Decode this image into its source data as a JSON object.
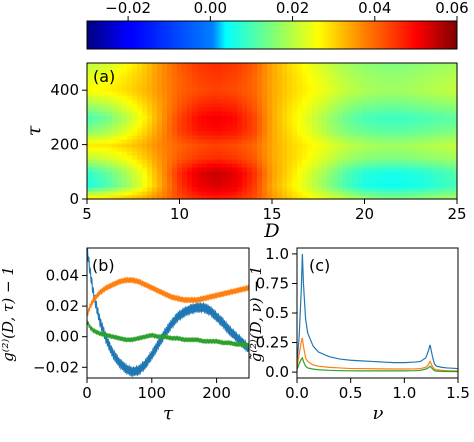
{
  "chart_data": [
    {
      "id": "colorbar",
      "type": "colorbar",
      "colormap": "jet",
      "range": [
        -0.03,
        0.06
      ],
      "ticks": [
        -0.02,
        0.0,
        0.02,
        0.04,
        0.06
      ],
      "tick_labels": [
        "−0.02",
        "0.00",
        "0.02",
        "0.04",
        "0.06"
      ]
    },
    {
      "id": "panel-a",
      "type": "heatmap",
      "panel_label": "(a)",
      "xlabel": "D",
      "ylabel": "τ",
      "xlim": [
        5,
        25
      ],
      "ylim": [
        0,
        500
      ],
      "xticks": [
        5,
        10,
        15,
        20,
        25
      ],
      "xtick_labels": [
        "5",
        "10",
        "15",
        "20",
        "25"
      ],
      "yticks": [
        0,
        200,
        400
      ],
      "ytick_labels": [
        "0",
        "200",
        "400"
      ],
      "value_range": [
        -0.03,
        0.06
      ],
      "d_samples": [
        5,
        6,
        7,
        8,
        9,
        10,
        11,
        12,
        13,
        14,
        15,
        16,
        17,
        18,
        19,
        20,
        21,
        22,
        23,
        24,
        25
      ],
      "tau_samples": [
        0,
        50,
        100,
        150,
        200,
        250,
        300,
        350,
        400,
        450,
        500
      ],
      "values": [
        [
          0.03,
          0.03,
          0.032,
          0.034,
          0.038,
          0.042,
          0.045,
          0.046,
          0.045,
          0.042,
          0.036,
          0.031,
          0.027,
          0.024,
          0.021,
          0.018,
          0.016,
          0.016,
          0.017,
          0.018,
          0.019
        ],
        [
          0.006,
          0.01,
          0.016,
          0.024,
          0.034,
          0.044,
          0.05,
          0.052,
          0.05,
          0.044,
          0.034,
          0.028,
          0.022,
          0.016,
          0.01,
          0.006,
          0.005,
          0.005,
          0.006,
          0.008,
          0.01
        ],
        [
          0.008,
          0.012,
          0.018,
          0.025,
          0.035,
          0.045,
          0.051,
          0.054,
          0.051,
          0.045,
          0.035,
          0.029,
          0.023,
          0.017,
          0.011,
          0.007,
          0.006,
          0.006,
          0.007,
          0.009,
          0.011
        ],
        [
          0.02,
          0.022,
          0.025,
          0.03,
          0.036,
          0.041,
          0.044,
          0.045,
          0.044,
          0.041,
          0.034,
          0.03,
          0.026,
          0.022,
          0.018,
          0.016,
          0.015,
          0.015,
          0.016,
          0.017,
          0.018
        ],
        [
          0.028,
          0.028,
          0.03,
          0.033,
          0.037,
          0.04,
          0.042,
          0.043,
          0.042,
          0.04,
          0.034,
          0.03,
          0.027,
          0.024,
          0.021,
          0.019,
          0.018,
          0.018,
          0.019,
          0.02,
          0.021
        ],
        [
          0.016,
          0.018,
          0.023,
          0.029,
          0.036,
          0.043,
          0.047,
          0.048,
          0.047,
          0.043,
          0.034,
          0.029,
          0.024,
          0.019,
          0.015,
          0.013,
          0.012,
          0.012,
          0.013,
          0.014,
          0.015
        ],
        [
          0.01,
          0.013,
          0.019,
          0.026,
          0.035,
          0.043,
          0.048,
          0.05,
          0.048,
          0.043,
          0.034,
          0.028,
          0.023,
          0.018,
          0.013,
          0.01,
          0.009,
          0.009,
          0.01,
          0.011,
          0.012
        ],
        [
          0.018,
          0.02,
          0.024,
          0.029,
          0.035,
          0.041,
          0.045,
          0.046,
          0.045,
          0.041,
          0.034,
          0.029,
          0.025,
          0.021,
          0.017,
          0.015,
          0.014,
          0.014,
          0.015,
          0.016,
          0.017
        ],
        [
          0.026,
          0.027,
          0.029,
          0.032,
          0.036,
          0.04,
          0.042,
          0.043,
          0.042,
          0.04,
          0.034,
          0.03,
          0.027,
          0.024,
          0.021,
          0.019,
          0.018,
          0.018,
          0.019,
          0.02,
          0.021
        ],
        [
          0.024,
          0.025,
          0.028,
          0.031,
          0.036,
          0.04,
          0.043,
          0.044,
          0.043,
          0.04,
          0.034,
          0.03,
          0.026,
          0.023,
          0.02,
          0.018,
          0.017,
          0.017,
          0.018,
          0.019,
          0.02
        ],
        [
          0.02,
          0.022,
          0.025,
          0.03,
          0.036,
          0.041,
          0.044,
          0.045,
          0.044,
          0.041,
          0.034,
          0.029,
          0.025,
          0.021,
          0.018,
          0.016,
          0.015,
          0.015,
          0.016,
          0.017,
          0.018
        ]
      ]
    },
    {
      "id": "panel-b",
      "type": "line",
      "panel_label": "(b)",
      "xlabel": "τ",
      "ylabel": "g⁽²⁾(D, τ) − 1",
      "xlim": [
        0,
        250
      ],
      "ylim": [
        -0.027,
        0.058
      ],
      "xticks": [
        0,
        100,
        200
      ],
      "xtick_labels": [
        "0",
        "100",
        "200"
      ],
      "yticks": [
        -0.02,
        0.0,
        0.02,
        0.04
      ],
      "ytick_labels": [
        "−0.02",
        "0.00",
        "0.02",
        "0.04"
      ],
      "series": [
        {
          "color": "#1f77b4",
          "oscillation_amplitude": 0.0028,
          "x": [
            0,
            5,
            10,
            20,
            30,
            40,
            50,
            60,
            70,
            80,
            90,
            100,
            110,
            120,
            130,
            140,
            150,
            160,
            170,
            180,
            190,
            200,
            210,
            220,
            230,
            240,
            250
          ],
          "y": [
            0.058,
            0.042,
            0.028,
            0.01,
            -0.002,
            -0.011,
            -0.017,
            -0.021,
            -0.023,
            -0.022,
            -0.018,
            -0.012,
            -0.005,
            0.002,
            0.008,
            0.013,
            0.016,
            0.018,
            0.019,
            0.019,
            0.017,
            0.013,
            0.009,
            0.004,
            0.0,
            -0.004,
            -0.008
          ]
        },
        {
          "color": "#ff7f0e",
          "oscillation_amplitude": 0.0015,
          "x": [
            0,
            5,
            10,
            20,
            30,
            40,
            50,
            60,
            70,
            80,
            90,
            100,
            110,
            120,
            130,
            140,
            150,
            160,
            170,
            180,
            190,
            200,
            210,
            220,
            230,
            240,
            250
          ],
          "y": [
            0.014,
            0.02,
            0.024,
            0.029,
            0.032,
            0.034,
            0.036,
            0.037,
            0.037,
            0.036,
            0.034,
            0.032,
            0.03,
            0.028,
            0.026,
            0.025,
            0.024,
            0.024,
            0.024,
            0.025,
            0.026,
            0.027,
            0.028,
            0.029,
            0.03,
            0.031,
            0.032
          ]
        },
        {
          "color": "#2ca02c",
          "oscillation_amplitude": 0.0012,
          "x": [
            0,
            5,
            10,
            20,
            30,
            40,
            50,
            60,
            70,
            80,
            90,
            100,
            110,
            120,
            130,
            140,
            150,
            160,
            170,
            180,
            190,
            200,
            210,
            220,
            230,
            240,
            250
          ],
          "y": [
            0.01,
            0.006,
            0.004,
            0.002,
            0.001,
            0.0,
            -0.001,
            -0.002,
            -0.002,
            -0.001,
            0.0,
            0.001,
            0.0,
            0.0,
            -0.001,
            -0.001,
            -0.002,
            -0.002,
            -0.002,
            -0.003,
            -0.003,
            -0.003,
            -0.004,
            -0.004,
            -0.005,
            -0.005,
            -0.006
          ]
        }
      ]
    },
    {
      "id": "panel-c",
      "type": "line",
      "panel_label": "(c)",
      "xlabel": "ν",
      "ylabel": "g̃⁽²⁾(D, ν) − 1",
      "xlim": [
        0,
        1.5
      ],
      "ylim": [
        -0.05,
        1.05
      ],
      "xticks": [
        0.0,
        0.5,
        1.0,
        1.5
      ],
      "xtick_labels": [
        "0.0",
        "0.5",
        "1.0",
        "1.5"
      ],
      "yticks": [
        0.0,
        0.25,
        0.5,
        0.75,
        1.0
      ],
      "ytick_labels": [
        "0.0",
        "0.25",
        "0.5",
        "0.75",
        "1.0"
      ],
      "series": [
        {
          "color": "#1f77b4",
          "x": [
            0.0,
            0.02,
            0.04,
            0.05,
            0.06,
            0.08,
            0.1,
            0.15,
            0.2,
            0.3,
            0.4,
            0.5,
            0.6,
            0.7,
            0.8,
            0.9,
            1.0,
            1.1,
            1.15,
            1.2,
            1.22,
            1.24,
            1.26,
            1.28,
            1.3,
            1.35,
            1.4,
            1.5
          ],
          "y": [
            0.08,
            0.3,
            0.7,
            1.0,
            0.75,
            0.45,
            0.33,
            0.22,
            0.17,
            0.13,
            0.11,
            0.1,
            0.095,
            0.09,
            0.085,
            0.08,
            0.08,
            0.085,
            0.09,
            0.12,
            0.17,
            0.23,
            0.14,
            0.07,
            0.05,
            0.04,
            0.035,
            0.03
          ]
        },
        {
          "color": "#ff7f0e",
          "x": [
            0.0,
            0.02,
            0.04,
            0.05,
            0.06,
            0.08,
            0.1,
            0.15,
            0.2,
            0.3,
            0.4,
            0.5,
            0.6,
            0.7,
            0.8,
            0.9,
            1.0,
            1.1,
            1.15,
            1.2,
            1.22,
            1.24,
            1.26,
            1.28,
            1.3,
            1.35,
            1.4,
            1.5
          ],
          "y": [
            0.04,
            0.15,
            0.26,
            0.29,
            0.22,
            0.12,
            0.09,
            0.06,
            0.05,
            0.04,
            0.035,
            0.03,
            0.03,
            0.028,
            0.027,
            0.026,
            0.026,
            0.027,
            0.03,
            0.04,
            0.06,
            0.09,
            0.05,
            0.025,
            0.02,
            0.015,
            0.012,
            0.01
          ]
        },
        {
          "color": "#2ca02c",
          "x": [
            0.0,
            0.02,
            0.04,
            0.05,
            0.06,
            0.08,
            0.1,
            0.15,
            0.2,
            0.3,
            0.4,
            0.5,
            0.6,
            0.7,
            0.8,
            0.9,
            1.0,
            1.1,
            1.15,
            1.2,
            1.22,
            1.24,
            1.26,
            1.28,
            1.3,
            1.35,
            1.4,
            1.5
          ],
          "y": [
            0.02,
            0.07,
            0.11,
            0.12,
            0.09,
            0.05,
            0.035,
            0.025,
            0.02,
            0.015,
            0.012,
            0.011,
            0.01,
            0.01,
            0.01,
            0.01,
            0.01,
            0.012,
            0.015,
            0.025,
            0.035,
            0.05,
            0.03,
            0.012,
            0.008,
            0.006,
            0.005,
            0.004
          ]
        }
      ]
    }
  ]
}
